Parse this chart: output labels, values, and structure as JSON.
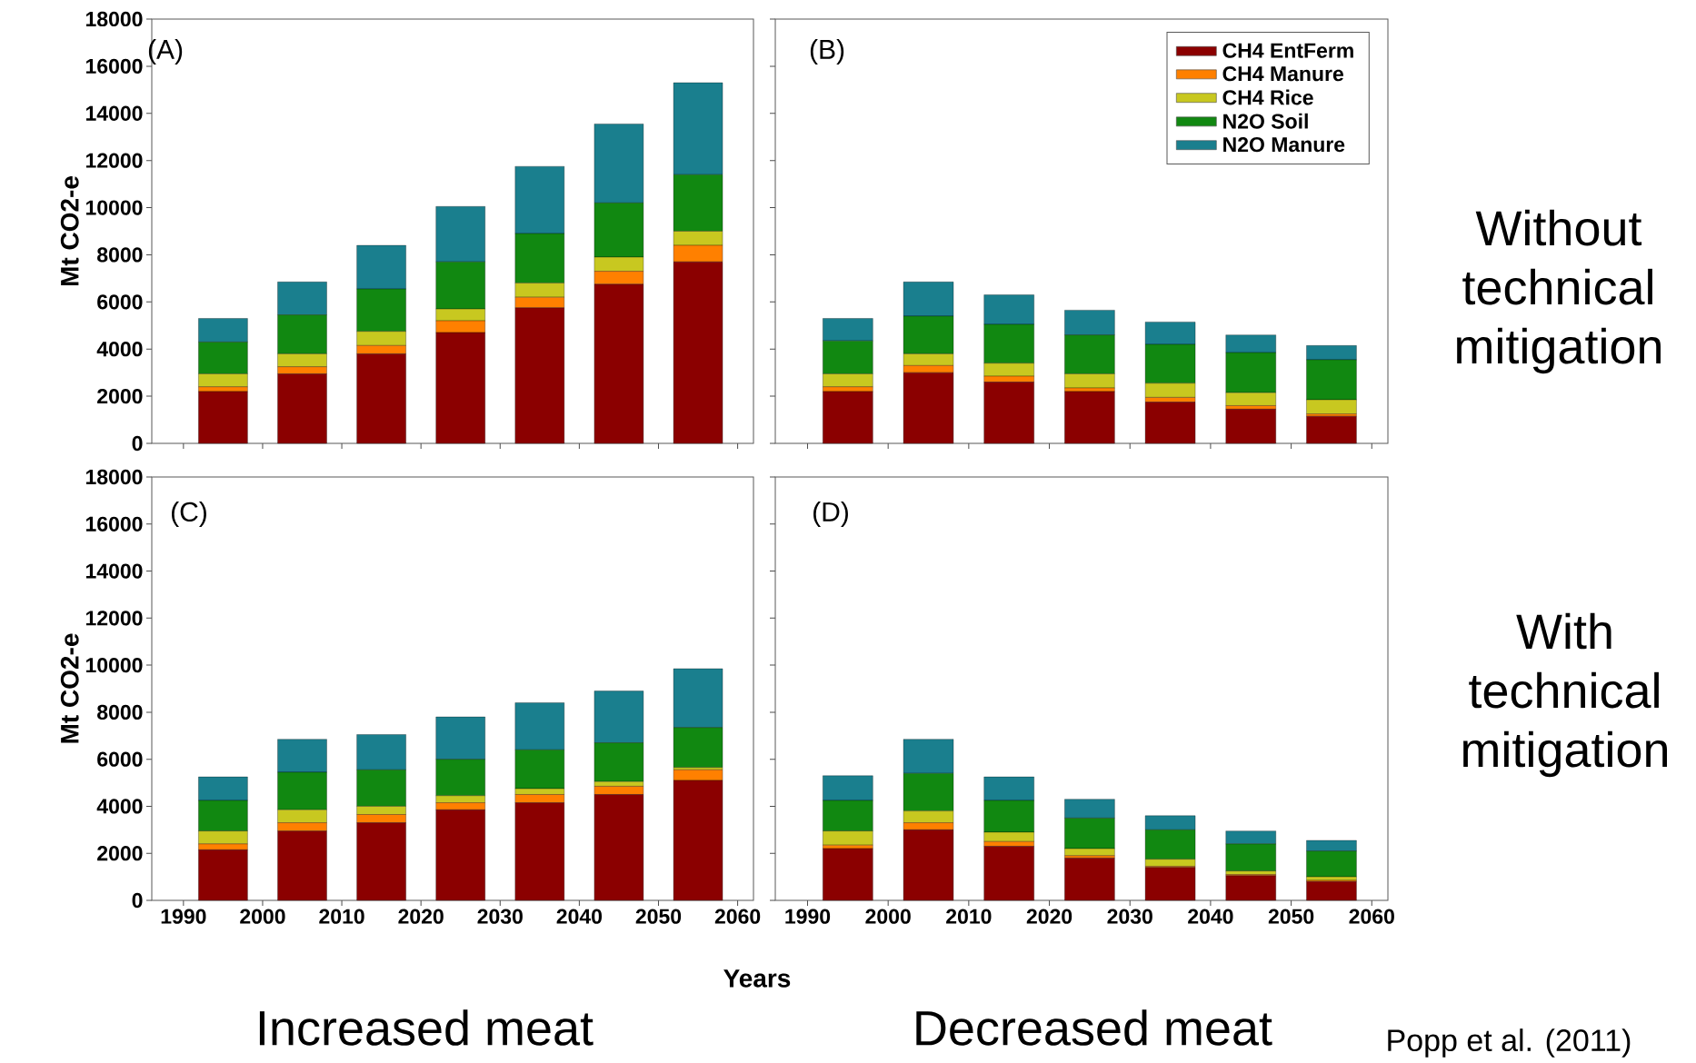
{
  "chart_data": [
    {
      "type": "bar",
      "stacked": true,
      "ylabel": "Mt CO2-e",
      "tick_labels": "y",
      "x": [
        1995,
        2005,
        2015,
        2025,
        2035,
        2045,
        2055
      ],
      "xlim": [
        1986,
        2062
      ],
      "xticks": [
        1990,
        2000,
        2010,
        2020,
        2030,
        2040,
        2050,
        2060
      ],
      "ylim": [
        0,
        18000
      ],
      "yticks": [
        0,
        2000,
        4000,
        6000,
        8000,
        10000,
        12000,
        14000,
        16000,
        18000
      ],
      "annotations": [
        "(A)"
      ],
      "series": [
        {
          "color": "#8b0000",
          "values": [
            2200,
            2950,
            3800,
            4700,
            5750,
            6750,
            7700
          ]
        },
        {
          "color": "#ff8000",
          "values": [
            200,
            300,
            350,
            500,
            450,
            550,
            700
          ]
        },
        {
          "color": "#c8c820",
          "values": [
            550,
            550,
            600,
            500,
            600,
            600,
            600
          ]
        },
        {
          "color": "#118811",
          "values": [
            1350,
            1650,
            1800,
            2000,
            2100,
            2300,
            2400
          ]
        },
        {
          "color": "#1a7f8e",
          "values": [
            1000,
            1400,
            1850,
            2350,
            2850,
            3350,
            3900
          ]
        }
      ]
    },
    {
      "type": "bar",
      "stacked": true,
      "tick_labels": false,
      "legend": "top right",
      "x": [
        1995,
        2005,
        2015,
        2025,
        2035,
        2045,
        2055
      ],
      "xlim": [
        1986,
        2062
      ],
      "xticks": [
        1990,
        2000,
        2010,
        2020,
        2030,
        2040,
        2050,
        2060
      ],
      "ylim": [
        0,
        18000
      ],
      "yticks": [
        0,
        2000,
        4000,
        6000,
        8000,
        10000,
        12000,
        14000,
        16000,
        18000
      ],
      "annotations": [
        "(B)",
        "Without technical mitigation"
      ],
      "series": [
        {
          "name": "CH4 EntFerm",
          "color": "#8b0000",
          "values": [
            2200,
            3000,
            2600,
            2200,
            1750,
            1450,
            1150
          ]
        },
        {
          "name": "CH4 Manure",
          "color": "#ff8000",
          "values": [
            200,
            300,
            250,
            150,
            200,
            150,
            100
          ]
        },
        {
          "name": "CH4 Rice",
          "color": "#c8c820",
          "values": [
            550,
            500,
            550,
            600,
            600,
            550,
            600
          ]
        },
        {
          "name": "N2O Soil",
          "color": "#118811",
          "values": [
            1400,
            1600,
            1650,
            1650,
            1650,
            1700,
            1700
          ]
        },
        {
          "name": "N2O Manure",
          "color": "#1a7f8e",
          "values": [
            950,
            1450,
            1250,
            1050,
            950,
            750,
            600
          ]
        }
      ]
    },
    {
      "type": "bar",
      "stacked": true,
      "ylabel": "Mt CO2-e",
      "xlabel": "Years",
      "x": [
        1995,
        2005,
        2015,
        2025,
        2035,
        2045,
        2055
      ],
      "xlim": [
        1986,
        2062
      ],
      "xticks": [
        1990,
        2000,
        2010,
        2020,
        2030,
        2040,
        2050,
        2060
      ],
      "ylim": [
        0,
        18000
      ],
      "yticks": [
        0,
        2000,
        4000,
        6000,
        8000,
        10000,
        12000,
        14000,
        16000,
        18000
      ],
      "annotations": [
        "(C)",
        "Increased meat"
      ],
      "series": [
        {
          "color": "#8b0000",
          "values": [
            2150,
            2950,
            3300,
            3850,
            4150,
            4500,
            5100
          ]
        },
        {
          "color": "#ff8000",
          "values": [
            250,
            350,
            350,
            300,
            350,
            350,
            450
          ]
        },
        {
          "color": "#c8c820",
          "values": [
            550,
            550,
            350,
            300,
            250,
            200,
            100
          ]
        },
        {
          "color": "#118811",
          "values": [
            1300,
            1600,
            1550,
            1550,
            1650,
            1650,
            1700
          ]
        },
        {
          "color": "#1a7f8e",
          "values": [
            1000,
            1400,
            1500,
            1800,
            2000,
            2200,
            2500
          ]
        }
      ]
    },
    {
      "type": "bar",
      "stacked": true,
      "tick_labels": "x",
      "x": [
        1995,
        2005,
        2015,
        2025,
        2035,
        2045,
        2055
      ],
      "xlim": [
        1986,
        2062
      ],
      "xticks": [
        1990,
        2000,
        2010,
        2020,
        2030,
        2040,
        2050,
        2060
      ],
      "ylim": [
        0,
        18000
      ],
      "yticks": [
        0,
        2000,
        4000,
        6000,
        8000,
        10000,
        12000,
        14000,
        16000,
        18000
      ],
      "annotations": [
        "(D)",
        "With technical mitigation",
        "Decreased meat",
        "Popp et al. (2011)"
      ],
      "series": [
        {
          "color": "#8b0000",
          "values": [
            2200,
            3000,
            2300,
            1800,
            1400,
            1050,
            800
          ]
        },
        {
          "color": "#ff8000",
          "values": [
            150,
            300,
            200,
            100,
            50,
            50,
            50
          ]
        },
        {
          "color": "#c8c820",
          "values": [
            600,
            500,
            400,
            300,
            300,
            150,
            150
          ]
        },
        {
          "color": "#118811",
          "values": [
            1300,
            1600,
            1350,
            1300,
            1250,
            1150,
            1100
          ]
        },
        {
          "color": "#1a7f8e",
          "values": [
            1050,
            1450,
            1000,
            800,
            600,
            550,
            450
          ]
        }
      ]
    }
  ]
}
